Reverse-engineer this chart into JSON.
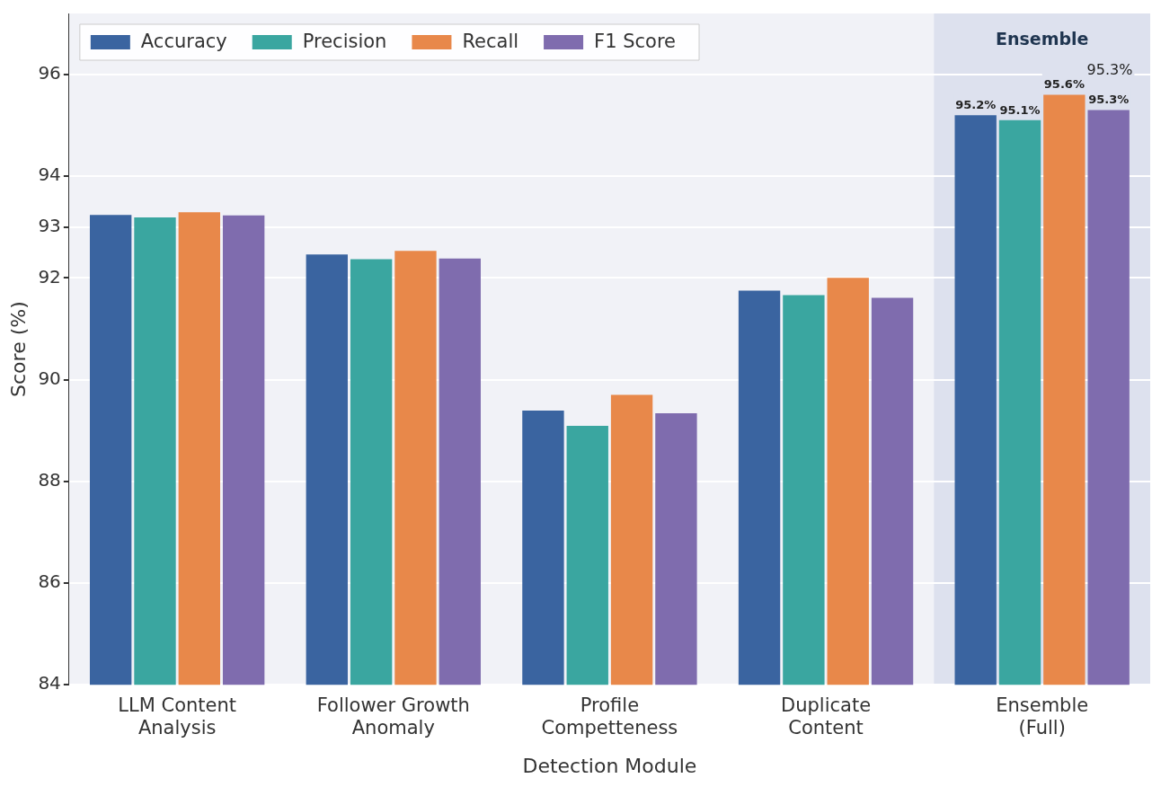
{
  "chart_data": {
    "type": "bar",
    "xlabel": "Detection Module",
    "ylabel": "Score (%)",
    "categories": [
      "LLM Content\nAnalysis",
      "Follower Growth\nAnomaly",
      "Profile\nCompetteness",
      "Duplicate\nContent",
      "Ensemble\n(Full)"
    ],
    "series": [
      {
        "name": "Accuracy",
        "color": "#3a64a0",
        "values": [
          93.24,
          92.46,
          89.39,
          91.75,
          95.2
        ],
        "value_labels": [
          null,
          null,
          null,
          null,
          "95.2%"
        ]
      },
      {
        "name": "Precision",
        "color": "#3aa6a0",
        "values": [
          93.19,
          92.37,
          89.09,
          91.66,
          95.1
        ],
        "value_labels": [
          null,
          null,
          null,
          null,
          "95.1%"
        ]
      },
      {
        "name": "Recall",
        "color": "#e8884a",
        "values": [
          93.29,
          92.53,
          89.7,
          92.0,
          95.6
        ],
        "value_labels": [
          null,
          null,
          null,
          null,
          "95.6%"
        ]
      },
      {
        "name": "F1 Score",
        "color": "#7f6cae",
        "values": [
          93.23,
          92.38,
          89.34,
          91.61,
          95.3
        ],
        "value_labels": [
          null,
          null,
          null,
          null,
          "95.3%"
        ]
      }
    ],
    "ylim": [
      84,
      97.2
    ],
    "yticks": [
      84,
      86,
      88,
      90,
      92,
      93,
      94,
      96
    ],
    "grid": "y",
    "legend": "top left",
    "bands": [
      {
        "axis": "x",
        "from": "Ensemble\n(Full)",
        "to": "Ensemble\n(Full)",
        "label": "Ensemble",
        "color": "#dde1ee"
      }
    ],
    "annotations": [
      "95.3%"
    ]
  }
}
